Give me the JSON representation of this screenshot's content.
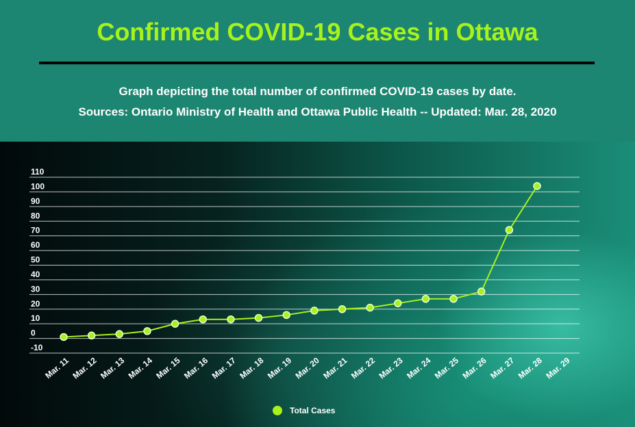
{
  "header": {
    "title": "Confirmed COVID-19 Cases in Ottawa",
    "subtitle": "Graph depicting the total number of confirmed COVID-19 cases by date.",
    "sources": "Sources:  Ontario Ministry of Health and Ottawa Public Health -- Updated: Mar. 28, 2020"
  },
  "colors": {
    "title": "#a8f21c",
    "header_bg": "#1c8672",
    "series": "#a8f21c"
  },
  "chart_data": {
    "type": "line",
    "categories": [
      "Mar. 11",
      "Mar. 12",
      "Mar. 13",
      "Mar. 14",
      "Mar. 15",
      "Mar. 16",
      "Mar. 17",
      "Mar. 18",
      "Mar. 19",
      "Mar. 20",
      "Mar. 21",
      "Mar. 22",
      "Mar. 23",
      "Mar. 24",
      "Mar. 25",
      "Mar. 26",
      "Mar. 27",
      "Mar. 28",
      "Mar. 29"
    ],
    "series": [
      {
        "name": "Total Cases",
        "values": [
          1,
          2,
          3,
          5,
          10,
          13,
          13,
          14,
          16,
          19,
          20,
          21,
          24,
          27,
          27,
          32,
          74,
          104,
          null
        ]
      }
    ],
    "yticks": [
      -10,
      0,
      10,
      20,
      30,
      40,
      50,
      60,
      70,
      80,
      90,
      100,
      110
    ],
    "ylim": [
      -10,
      110
    ],
    "grid": true,
    "legend": "bottom-center"
  }
}
